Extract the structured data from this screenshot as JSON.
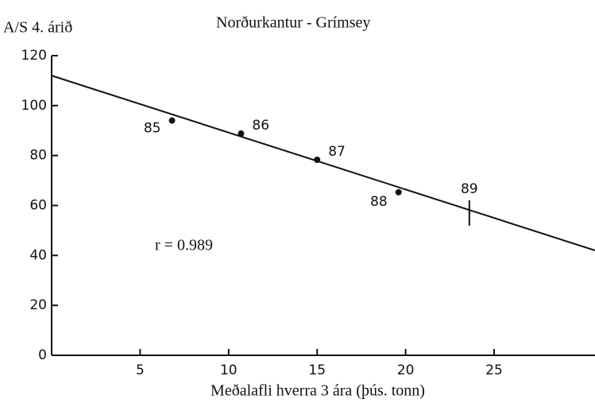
{
  "chart_data": {
    "type": "scatter",
    "title": "Norðurkantur - Grímsey",
    "y_label": "A/S 4. árið",
    "x_label": "Meðalafli hverra 3 ára (þús. tonn)",
    "annotation": "r = 0.989",
    "xlim": [
      0,
      30.7
    ],
    "ylim": [
      0,
      120
    ],
    "xticks": [
      5,
      10,
      15,
      20,
      25
    ],
    "yticks": [
      0,
      20,
      40,
      60,
      80,
      100,
      120
    ],
    "series": [
      {
        "name": "points",
        "color": "#111",
        "x": [
          6.8,
          10.7,
          15.0,
          19.6
        ],
        "values": [
          94,
          88.8,
          78.3,
          65.3
        ],
        "point_labels": [
          "85",
          "86",
          "87",
          "88"
        ]
      }
    ],
    "prediction": {
      "x": 23.6,
      "value": 57,
      "label": "89"
    },
    "fit_line": {
      "x": [
        0,
        30.7
      ],
      "values": [
        112,
        42
      ]
    }
  }
}
